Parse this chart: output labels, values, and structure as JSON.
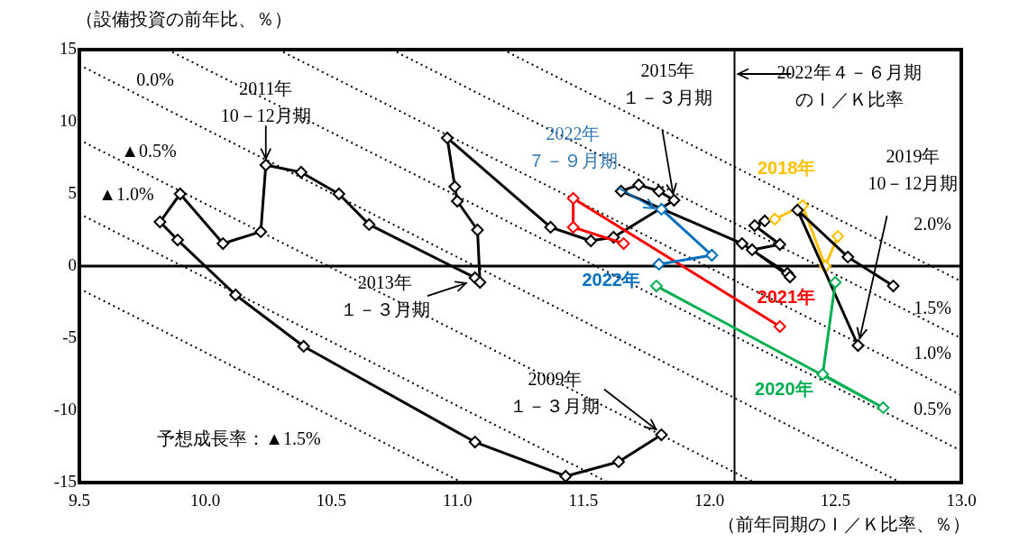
{
  "chart_data": {
    "type": "line",
    "xlabel": "（前年同期のＩ／Ｋ比率、％）",
    "ylabel": "（設備投資の前年比、％）",
    "xlim": [
      9.5,
      13.0
    ],
    "xticks": [
      9.5,
      {
        "value": 10,
        "label": "10.0"
      },
      10.5,
      {
        "value": 11,
        "label": "11.0"
      },
      11.5,
      {
        "value": 12,
        "label": "12.0"
      },
      12.5,
      {
        "value": 13,
        "label": "13.0"
      }
    ],
    "ylim": [
      -15,
      15
    ],
    "yticks": [
      -15,
      -10,
      -5,
      0,
      5,
      10,
      15
    ],
    "grid": false,
    "legend": false,
    "series": [
      {
        "color": "#000000",
        "marker": "diamond",
        "x": [
          11.81,
          11.64,
          11.43,
          11.07,
          10.39,
          10.12,
          9.89,
          9.82,
          9.9,
          10.07,
          10.22,
          10.24,
          10.38,
          10.53,
          10.65,
          11.07,
          11.09,
          11.08,
          11.0,
          10.99,
          10.96,
          11.37,
          11.53,
          11.62,
          11.86,
          11.8,
          11.72,
          11.65,
          12.13,
          12.31,
          12.32,
          12.17,
          12.28,
          12.18,
          12.22
        ],
        "values": [
          -11.69,
          -13.56,
          -14.56,
          -12.19,
          -5.56,
          -2.0,
          1.81,
          3.06,
          5.0,
          1.56,
          2.38,
          7.0,
          6.5,
          5.0,
          2.88,
          -0.81,
          -1.13,
          2.5,
          4.5,
          5.5,
          8.88,
          2.69,
          1.75,
          2.0,
          4.56,
          5.19,
          5.63,
          5.19,
          1.56,
          -0.5,
          -0.75,
          1.13,
          1.5,
          2.81,
          3.13
        ]
      },
      {
        "name": "2018年",
        "color": "#ffc000",
        "marker": "diamond",
        "x": [
          12.26,
          12.37,
          12.46,
          12.51
        ],
        "values": [
          3.25,
          4.19,
          0.0,
          2.06
        ]
      },
      {
        "color": "#000000",
        "marker": "diamond",
        "x": [
          12.73,
          12.55,
          12.35,
          12.59
        ],
        "values": [
          -1.38,
          0.63,
          3.88,
          -5.5
        ]
      },
      {
        "name": "2020年",
        "color": "#00b050",
        "marker": "diamond",
        "x": [
          12.5,
          12.45,
          12.69,
          11.79
        ],
        "values": [
          -1.13,
          -7.5,
          -9.81,
          -1.38
        ]
      },
      {
        "name": "2021年",
        "color": "#ff0000",
        "marker": "diamond",
        "x": [
          12.28,
          11.46,
          11.46,
          11.66
        ],
        "values": [
          -4.19,
          4.69,
          2.69,
          1.56
        ]
      },
      {
        "name": "2022年",
        "color": "#0070c0",
        "marker": "diamond",
        "x": [
          11.8,
          12.01,
          11.81
        ],
        "values": [
          0.13,
          0.75,
          3.94
        ]
      },
      {
        "name": "2.0%",
        "color": "#000000",
        "marker": "none",
        "line_style": "dotted",
        "x": [
          11.18,
          13.0
        ],
        "values": [
          15,
          -1.06
        ]
      },
      {
        "name": "1.5%",
        "color": "#000000",
        "marker": "none",
        "line_style": "dotted",
        "x": [
          10.74,
          13.0
        ],
        "values": [
          15,
          -5.0
        ]
      },
      {
        "name": "1.0%",
        "color": "#000000",
        "marker": "none",
        "line_style": "dotted",
        "x": [
          10.29,
          13.0
        ],
        "values": [
          15,
          -8.94
        ]
      },
      {
        "name": "0.5%",
        "color": "#000000",
        "marker": "none",
        "line_style": "dotted",
        "x": [
          9.85,
          13.0
        ],
        "values": [
          15,
          -12.8
        ]
      },
      {
        "name": "0.0%",
        "color": "#000000",
        "marker": "none",
        "line_style": "dotted",
        "x": [
          9.5,
          12.76
        ],
        "values": [
          13.94,
          -15
        ]
      },
      {
        "name": "▲0.5%",
        "color": "#000000",
        "marker": "none",
        "line_style": "dotted",
        "x": [
          9.5,
          12.18
        ],
        "values": [
          8.75,
          -15
        ]
      },
      {
        "name": "▲1.0%",
        "color": "#000000",
        "marker": "none",
        "line_style": "dotted",
        "x": [
          9.5,
          11.6
        ],
        "values": [
          3.63,
          -15
        ]
      },
      {
        "name": "予想成長率：▲1.5%",
        "color": "#000000",
        "marker": "none",
        "line_style": "dotted",
        "x": [
          9.5,
          11.02
        ],
        "values": [
          -1.56,
          -15
        ]
      }
    ],
    "ref_lines": [
      {
        "axis": "y",
        "value": 0
      },
      {
        "axis": "x",
        "value": 12.1,
        "label": "2022年４－６月期のＩ／Ｋ比率"
      }
    ],
    "annotations": [
      {
        "text": "2011年10－12月期",
        "x": 10.24,
        "y": 7.0
      },
      {
        "text": "2013年１－３月期",
        "x": 11.07,
        "y": -0.81
      },
      {
        "text": "2009年１－３月期",
        "x": 11.81,
        "y": -11.69
      },
      {
        "text": "2015年１－３月期",
        "x": 11.86,
        "y": 4.56
      },
      {
        "text": "2022年７－９月期",
        "x": 11.81,
        "y": 3.94
      },
      {
        "text": "2019年10－12月期",
        "x": 12.59,
        "y": -5.5
      }
    ]
  }
}
